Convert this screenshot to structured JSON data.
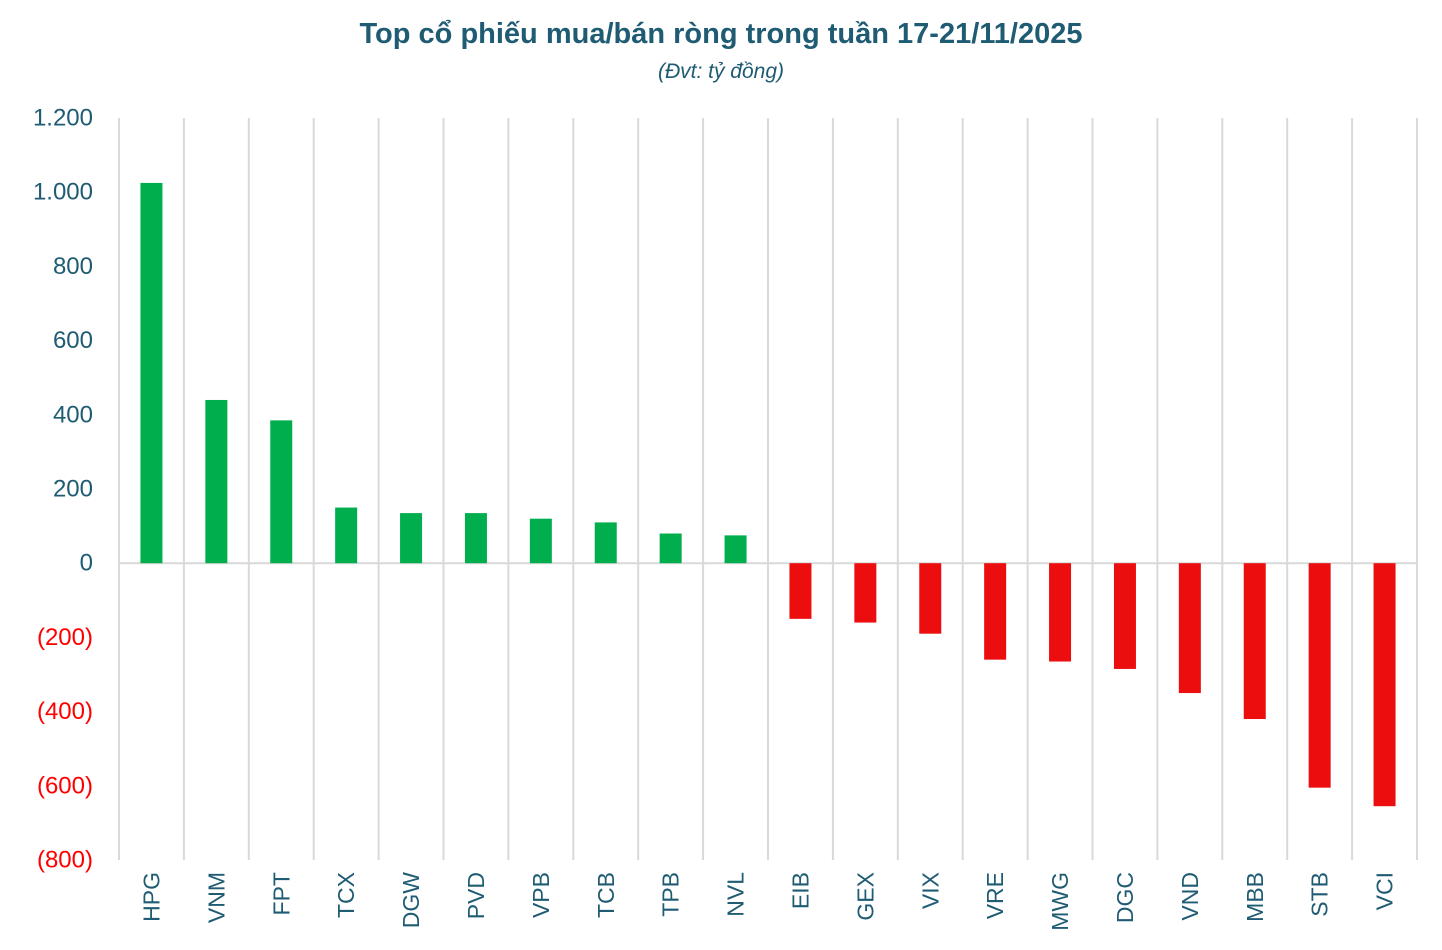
{
  "chart": {
    "title": "Top cổ phiếu mua/bán ròng trong tuần 17-21/11/2025",
    "subtitle": "(Đvt: tỷ đồng)"
  },
  "chart_data": {
    "type": "bar",
    "title": "Top cổ phiếu mua/bán ròng trong tuần 17-21/11/2025",
    "subtitle": "(Đvt: tỷ đồng)",
    "categories": [
      "HPG",
      "VNM",
      "FPT",
      "TCX",
      "DGW",
      "PVD",
      "VPB",
      "TCB",
      "TPB",
      "NVL",
      "EIB",
      "GEX",
      "VIX",
      "VRE",
      "MWG",
      "DGC",
      "VND",
      "MBB",
      "STB",
      "VCI"
    ],
    "values": [
      1025,
      440,
      385,
      150,
      135,
      135,
      120,
      110,
      80,
      75,
      -150,
      -160,
      -190,
      -260,
      -265,
      -285,
      -350,
      -420,
      -605,
      -655
    ],
    "xlabel": "",
    "ylabel": "",
    "ylim": [
      -800,
      1200
    ],
    "ytick_step": 200,
    "ytick_labels_positive": [
      "1.200",
      "1.000",
      "800",
      "600",
      "400",
      "200",
      "0"
    ],
    "ytick_labels_negative": [
      "(200)",
      "(400)",
      "(600)",
      "(800)"
    ],
    "grid": "vertical-between-categories",
    "legend": "none",
    "colors": {
      "positive_bar": "#00AE4E",
      "negative_bar": "#EC0E0E",
      "axis_text": "#1F5C73",
      "negative_tick_text": "#FF0000",
      "gridline": "#D9D9D9",
      "title_text": "#1F5C73"
    }
  }
}
